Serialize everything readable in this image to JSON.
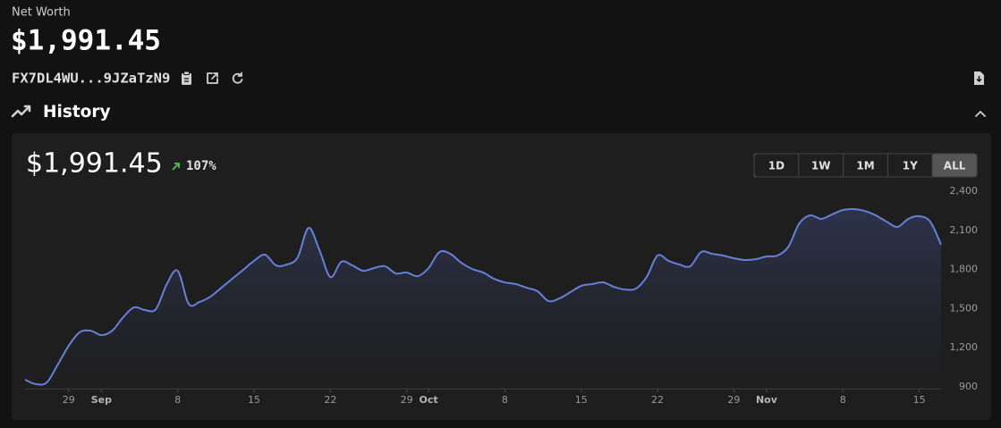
{
  "header": {
    "label": "Net Worth",
    "value": "$1,991.45",
    "address": "FX7DL4WU...9JZaTzN9"
  },
  "section": {
    "title": "History"
  },
  "card": {
    "value": "$1,991.45",
    "change": "107%",
    "change_color": "#4caf50",
    "range_buttons": [
      "1D",
      "1W",
      "1M",
      "1Y",
      "ALL"
    ],
    "active_range": "ALL"
  },
  "chart_data": {
    "type": "line",
    "color": "#6680d9",
    "x": [
      "08-25",
      "08-26",
      "08-27",
      "08-28",
      "08-29",
      "08-30",
      "08-31",
      "09-01",
      "09-02",
      "09-03",
      "09-04",
      "09-05",
      "09-06",
      "09-07",
      "09-08",
      "09-09",
      "09-10",
      "09-11",
      "09-12",
      "09-13",
      "09-14",
      "09-15",
      "09-16",
      "09-17",
      "09-18",
      "09-19",
      "09-20",
      "09-21",
      "09-22",
      "09-23",
      "09-24",
      "09-25",
      "09-26",
      "09-27",
      "09-28",
      "09-29",
      "09-30",
      "10-01",
      "10-02",
      "10-03",
      "10-04",
      "10-05",
      "10-06",
      "10-07",
      "10-08",
      "10-09",
      "10-10",
      "10-11",
      "10-12",
      "10-13",
      "10-14",
      "10-15",
      "10-16",
      "10-17",
      "10-18",
      "10-19",
      "10-20",
      "10-21",
      "10-22",
      "10-23",
      "10-24",
      "10-25",
      "10-26",
      "10-27",
      "10-28",
      "10-29",
      "10-30",
      "10-31",
      "11-01",
      "11-02",
      "11-03",
      "11-04",
      "11-05",
      "11-06",
      "11-07",
      "11-08",
      "11-09",
      "11-10",
      "11-11",
      "11-12",
      "11-13",
      "11-14",
      "11-15",
      "11-16",
      "11-17"
    ],
    "values": [
      955,
      921,
      934,
      1071,
      1215,
      1318,
      1331,
      1297,
      1331,
      1434,
      1510,
      1489,
      1496,
      1688,
      1790,
      1537,
      1551,
      1592,
      1660,
      1729,
      1797,
      1866,
      1914,
      1832,
      1838,
      1893,
      2119,
      1948,
      1742,
      1859,
      1832,
      1790,
      1811,
      1825,
      1770,
      1777,
      1749,
      1811,
      1934,
      1920,
      1852,
      1804,
      1777,
      1729,
      1701,
      1688,
      1660,
      1633,
      1558,
      1578,
      1626,
      1674,
      1688,
      1701,
      1667,
      1647,
      1653,
      1742,
      1907,
      1866,
      1838,
      1825,
      1934,
      1920,
      1907,
      1886,
      1873,
      1879,
      1900,
      1907,
      1975,
      2153,
      2215,
      2188,
      2222,
      2256,
      2263,
      2249,
      2215,
      2167,
      2126,
      2188,
      2208,
      2167,
      1991
    ],
    "xlim": [
      "08-25",
      "11-17"
    ],
    "xticks": [
      {
        "value": "08-29",
        "label": "29"
      },
      {
        "value": "09-01",
        "label": "Sep"
      },
      {
        "value": "09-08",
        "label": "8"
      },
      {
        "value": "09-15",
        "label": "15"
      },
      {
        "value": "09-22",
        "label": "22"
      },
      {
        "value": "09-29",
        "label": "29"
      },
      {
        "value": "10-01",
        "label": "Oct"
      },
      {
        "value": "10-08",
        "label": "8"
      },
      {
        "value": "10-15",
        "label": "15"
      },
      {
        "value": "10-22",
        "label": "22"
      },
      {
        "value": "10-29",
        "label": "29"
      },
      {
        "value": "11-01",
        "label": "Nov"
      },
      {
        "value": "11-08",
        "label": "8"
      },
      {
        "value": "11-15",
        "label": "15"
      }
    ],
    "ylim": [
      900,
      2400
    ],
    "yticks": [
      900,
      {
        "value": 1200,
        "label": "1,200"
      },
      {
        "value": 1500,
        "label": "1,500"
      },
      {
        "value": 1800,
        "label": "1,800"
      },
      {
        "value": 2100,
        "label": "2,100"
      },
      {
        "value": 2400,
        "label": "2,400"
      }
    ],
    "grid": false
  }
}
